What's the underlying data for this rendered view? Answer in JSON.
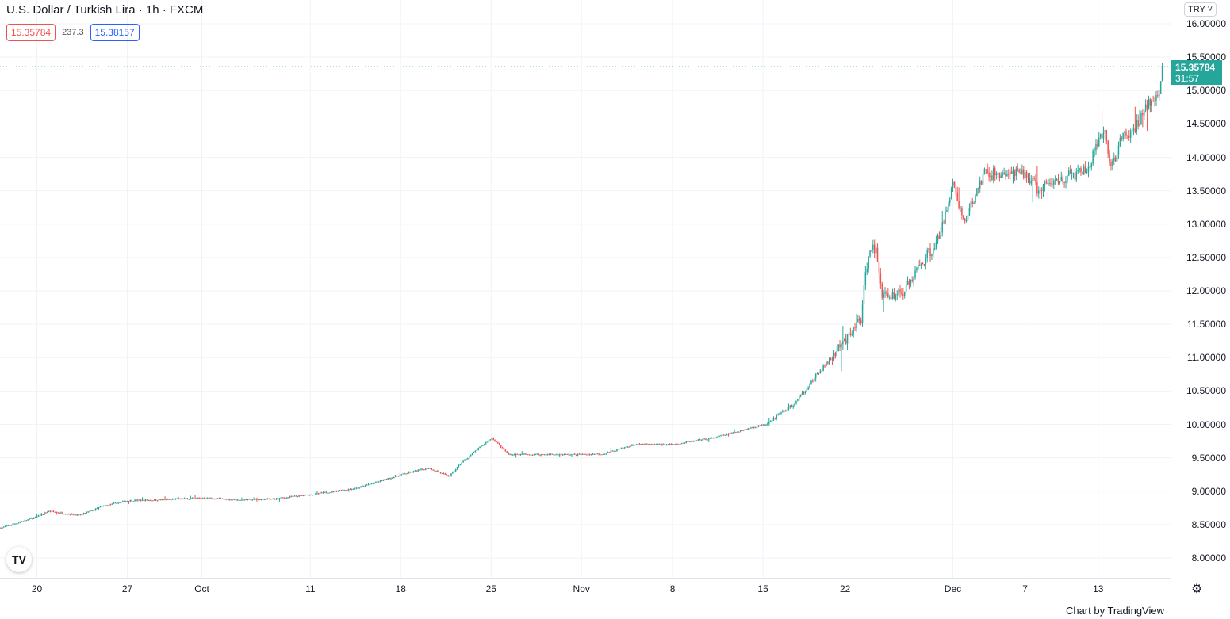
{
  "header": {
    "title": "U.S. Dollar / Turkish Lira · 1h · FXCM",
    "bid": "15.35784",
    "spread": "237.3",
    "ask": "15.38157"
  },
  "currency_button": "TRY ˅",
  "current_price": {
    "price": "15.35784",
    "countdown": "31:57"
  },
  "credit": "Chart by TradingView",
  "logo_text": "TV",
  "colors": {
    "up": "#26a69a",
    "down": "#ef5350",
    "grid": "#f0f3fa"
  },
  "chart_data": {
    "type": "candlestick",
    "title": "U.S. Dollar / Turkish Lira · 1h · FXCM",
    "x_unit": "hourly bar index",
    "xlim": [
      0,
      1553
    ],
    "ylim": [
      7.85,
      16.2
    ],
    "grid": true,
    "y_ticks": [
      "16.00000",
      "15.50000",
      "15.00000",
      "14.50000",
      "14.00000",
      "13.50000",
      "13.00000",
      "12.50000",
      "12.00000",
      "11.50000",
      "11.00000",
      "10.50000",
      "10.00000",
      "9.50000",
      "9.00000",
      "8.50000",
      "8.00000"
    ],
    "x_ticks": [
      {
        "bar": 49,
        "label": "20"
      },
      {
        "bar": 169,
        "label": "27"
      },
      {
        "bar": 268,
        "label": "Oct"
      },
      {
        "bar": 412,
        "label": "11"
      },
      {
        "bar": 532,
        "label": "18"
      },
      {
        "bar": 652,
        "label": "25"
      },
      {
        "bar": 772,
        "label": "Nov"
      },
      {
        "bar": 893,
        "label": "8"
      },
      {
        "bar": 1013,
        "label": "15"
      },
      {
        "bar": 1122,
        "label": "22"
      },
      {
        "bar": 1265,
        "label": "Dec"
      },
      {
        "bar": 1361,
        "label": "7"
      },
      {
        "bar": 1458,
        "label": "13"
      }
    ],
    "close_path": [
      [
        0,
        8.45
      ],
      [
        49,
        8.62
      ],
      [
        63,
        8.7
      ],
      [
        105,
        8.64
      ],
      [
        134,
        8.77
      ],
      [
        169,
        8.86
      ],
      [
        211,
        8.87
      ],
      [
        268,
        8.9
      ],
      [
        316,
        8.87
      ],
      [
        358,
        8.88
      ],
      [
        412,
        8.95
      ],
      [
        474,
        9.05
      ],
      [
        532,
        9.25
      ],
      [
        568,
        9.35
      ],
      [
        595,
        9.22
      ],
      [
        611,
        9.42
      ],
      [
        632,
        9.62
      ],
      [
        652,
        9.8
      ],
      [
        674,
        9.55
      ],
      [
        737,
        9.55
      ],
      [
        772,
        9.55
      ],
      [
        800,
        9.56
      ],
      [
        842,
        9.7
      ],
      [
        893,
        9.7
      ],
      [
        947,
        9.8
      ],
      [
        1013,
        10.0
      ],
      [
        1053,
        10.3
      ],
      [
        1084,
        10.75
      ],
      [
        1122,
        11.25
      ],
      [
        1142,
        11.6
      ],
      [
        1153,
        12.7
      ],
      [
        1163,
        12.55
      ],
      [
        1171,
        11.9
      ],
      [
        1200,
        12.0
      ],
      [
        1221,
        12.4
      ],
      [
        1247,
        12.8
      ],
      [
        1258,
        13.4
      ],
      [
        1265,
        13.6
      ],
      [
        1279,
        13.0
      ],
      [
        1305,
        13.75
      ],
      [
        1337,
        13.75
      ],
      [
        1361,
        13.75
      ],
      [
        1379,
        13.5
      ],
      [
        1400,
        13.65
      ],
      [
        1442,
        13.8
      ],
      [
        1465,
        14.4
      ],
      [
        1474,
        13.85
      ],
      [
        1489,
        14.3
      ],
      [
        1505,
        14.4
      ],
      [
        1521,
        14.8
      ],
      [
        1537,
        14.85
      ],
      [
        1542,
        15.36
      ]
    ],
    "last_price": 15.35784
  }
}
